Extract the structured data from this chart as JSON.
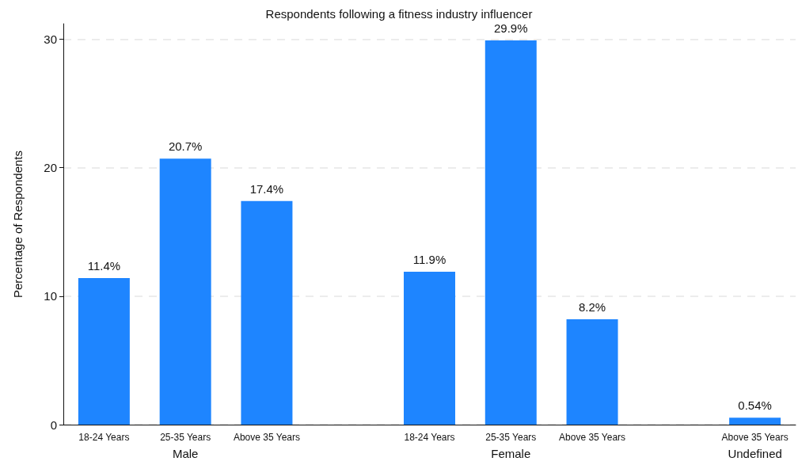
{
  "chart_data": {
    "type": "bar",
    "title": "Respondents following a fitness industry influencer",
    "ylabel": "Percentage of Respondents",
    "categories": [
      "18-24 Years",
      "25-35 Years",
      "Above 35 Years",
      null,
      "18-24 Years",
      "25-35 Years",
      "Above 35 Years",
      null,
      "Above 35 Years"
    ],
    "values": [
      11.4,
      20.7,
      17.4,
      null,
      11.9,
      29.9,
      8.2,
      null,
      0.54
    ],
    "value_labels": [
      "11.4%",
      "20.7%",
      "17.4%",
      null,
      "11.9%",
      "29.9%",
      "8.2%",
      null,
      "0.54%"
    ],
    "annotations": [
      "Male",
      "Female",
      "Undefined"
    ],
    "color": "#1e85ff",
    "ylim": [
      0,
      31.2
    ],
    "yticks": [
      0,
      10,
      20,
      30
    ],
    "grid": "y"
  }
}
